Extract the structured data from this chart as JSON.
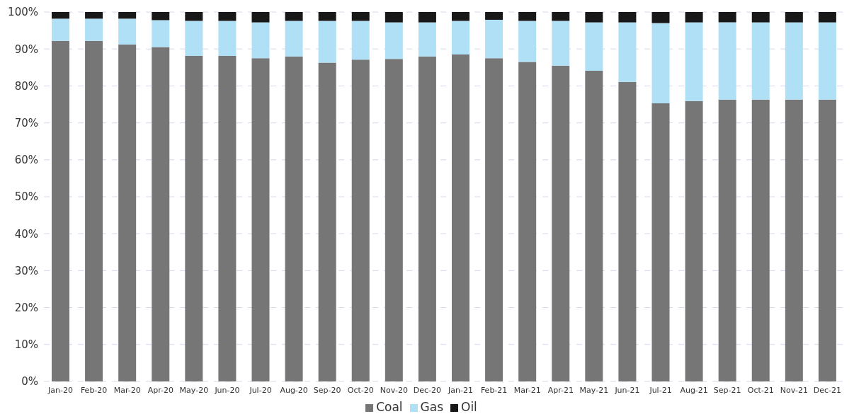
{
  "chart_data": {
    "type": "bar",
    "stacked": true,
    "categories": [
      "Jan-20",
      "Feb-20",
      "Mar-20",
      "Apr-20",
      "May-20",
      "Jun-20",
      "Jul-20",
      "Aug-20",
      "Sep-20",
      "Oct-20",
      "Nov-20",
      "Dec-20",
      "Jan-21",
      "Feb-21",
      "Mar-21",
      "Apr-21",
      "May-21",
      "Jun-21",
      "Jul-21",
      "Aug-21",
      "Sep-21",
      "Oct-21",
      "Nov-21",
      "Dec-21"
    ],
    "series": [
      {
        "name": "Coal",
        "color": "#767676",
        "values": [
          92.2,
          92.2,
          91.2,
          90.5,
          88.1,
          88.1,
          87.5,
          88.0,
          86.3,
          87.1,
          87.3,
          88.0,
          88.5,
          87.5,
          86.5,
          85.5,
          84.1,
          81.1,
          75.3,
          75.9,
          76.3,
          76.3,
          76.3,
          76.3
        ]
      },
      {
        "name": "Gas",
        "color": "#b0e0f5",
        "values": [
          6.0,
          6.0,
          7.0,
          7.3,
          9.5,
          9.5,
          9.7,
          9.6,
          11.3,
          10.5,
          9.9,
          9.2,
          9.1,
          10.4,
          11.1,
          12.1,
          13.1,
          16.1,
          21.7,
          21.3,
          20.9,
          20.9,
          20.9,
          20.9
        ]
      },
      {
        "name": "Oil",
        "color": "#181818",
        "values": [
          1.8,
          1.8,
          1.8,
          2.2,
          2.4,
          2.4,
          2.8,
          2.4,
          2.4,
          2.4,
          2.8,
          2.8,
          2.4,
          2.1,
          2.4,
          2.4,
          2.8,
          2.8,
          3.0,
          2.8,
          2.8,
          2.8,
          2.8,
          2.8
        ]
      }
    ],
    "ylim": [
      0,
      100
    ],
    "yticks": [
      {
        "value": 0,
        "label": "0%"
      },
      {
        "value": 10,
        "label": "10%"
      },
      {
        "value": 20,
        "label": "20%"
      },
      {
        "value": 30,
        "label": "30%"
      },
      {
        "value": 40,
        "label": "40%"
      },
      {
        "value": 50,
        "label": "50%"
      },
      {
        "value": 60,
        "label": "60%"
      },
      {
        "value": 70,
        "label": "70%"
      },
      {
        "value": 80,
        "label": "80%"
      },
      {
        "value": 90,
        "label": "90%"
      },
      {
        "value": 100,
        "label": "100%"
      }
    ],
    "grid": "y",
    "legend": "bottom"
  }
}
